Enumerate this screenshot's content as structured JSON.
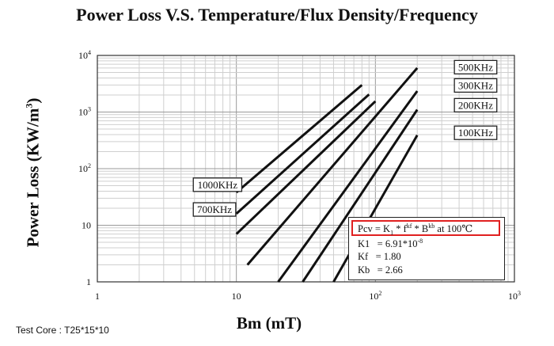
{
  "chart_data": {
    "type": "line",
    "title": "Power Loss V.S. Temperature/Flux Density/Frequency",
    "xlabel": "Bm (mT)",
    "ylabel_main": "Power Loss",
    "ylabel_unit": "(KW/m",
    "ylabel_unit_exp": "3",
    "ylabel_unit_close": ")",
    "x_scale": "log",
    "y_scale": "log",
    "xlim": [
      1,
      1000
    ],
    "ylim": [
      1,
      10000
    ],
    "grid": true,
    "x_ticks": [
      {
        "value": 1,
        "base": "1",
        "exp": ""
      },
      {
        "value": 10,
        "base": "10",
        "exp": ""
      },
      {
        "value": 100,
        "base": "10",
        "exp": "2"
      },
      {
        "value": 1000,
        "base": "10",
        "exp": "3"
      }
    ],
    "y_ticks": [
      {
        "value": 1,
        "base": "1",
        "exp": ""
      },
      {
        "value": 10,
        "base": "10",
        "exp": ""
      },
      {
        "value": 100,
        "base": "10",
        "exp": "2"
      },
      {
        "value": 1000,
        "base": "10",
        "exp": "3"
      },
      {
        "value": 10000,
        "base": "10",
        "exp": "4"
      }
    ],
    "series": [
      {
        "name": "500KHz",
        "points": [
          [
            12,
            2.0
          ],
          [
            200,
            6000
          ]
        ]
      },
      {
        "name": "300KHz",
        "points": [
          [
            20,
            1.0
          ],
          [
            200,
            2350
          ]
        ]
      },
      {
        "name": "200KHz",
        "points": [
          [
            30,
            1.0
          ],
          [
            200,
            1100
          ]
        ]
      },
      {
        "name": "100KHz",
        "points": [
          [
            50,
            1.0
          ],
          [
            200,
            390
          ]
        ]
      },
      {
        "name": "1000KHz",
        "points": [
          [
            10,
            38
          ],
          [
            80,
            3000
          ]
        ]
      },
      {
        "name": "700KHz",
        "points": [
          [
            10,
            16
          ],
          [
            90,
            2050
          ]
        ]
      },
      {
        "name": "",
        "points": [
          [
            10,
            7
          ],
          [
            100,
            1550
          ]
        ]
      }
    ],
    "label_boxes": [
      {
        "text": "500KHz",
        "at": [
          370,
          6200
        ]
      },
      {
        "text": "300KHz",
        "at": [
          370,
          2950
        ]
      },
      {
        "text": "200KHz",
        "at": [
          370,
          1320
        ]
      },
      {
        "text": "100KHz",
        "at": [
          370,
          430
        ]
      },
      {
        "text": "1000KHz",
        "at": [
          4.9,
          52
        ]
      },
      {
        "text": "700KHz",
        "at": [
          4.9,
          19
        ]
      }
    ]
  },
  "info": {
    "formula": {
      "pcv": "Pcv = K",
      "k_sub": "1",
      "f_text": " *  f",
      "f_sup": "kf",
      "b_text": " *  B",
      "b_sup": "kb",
      "tail": "  at 100℃"
    },
    "k1": {
      "label": "K1",
      "value": "= 6.91*10",
      "exp": "-8"
    },
    "kf": {
      "label": "Kf",
      "value": "= 1.80"
    },
    "kb": {
      "label": "Kb",
      "value": "= 2.66"
    }
  },
  "test_core": "Test Core : T25*15*10"
}
